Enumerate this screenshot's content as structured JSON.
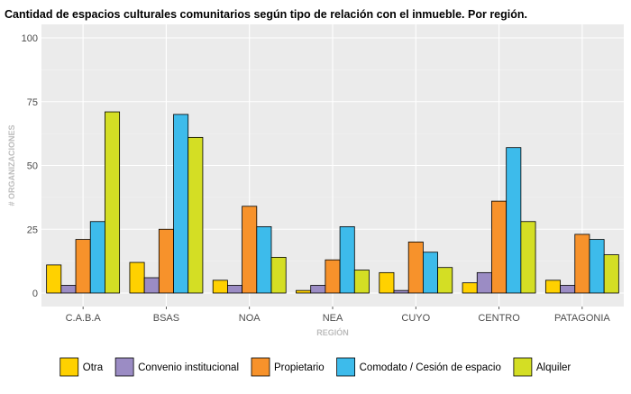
{
  "chart_data": {
    "type": "bar",
    "title": "Cantidad de espacios culturales comunitarios según tipo de relación con el inmueble. Por región.",
    "xlabel": "REGIÓN",
    "ylabel": "# ORGANIZACIONES",
    "ylim": [
      0,
      105
    ],
    "yticks": [
      0,
      25,
      50,
      75,
      100
    ],
    "grid": true,
    "legend_position": "bottom",
    "categories": [
      "C.A.B.A",
      "BSAS",
      "NOA",
      "NEA",
      "CUYO",
      "CENTRO",
      "PATAGONIA"
    ],
    "series": [
      {
        "name": "Otra",
        "color": "#FFD100",
        "values": [
          11,
          12,
          5,
          1,
          8,
          4,
          5
        ]
      },
      {
        "name": "Convenio institucional",
        "color": "#9B8CC4",
        "values": [
          3,
          6,
          3,
          3,
          1,
          8,
          3
        ]
      },
      {
        "name": "Propietario",
        "color": "#F7922B",
        "values": [
          21,
          25,
          34,
          13,
          20,
          36,
          23
        ]
      },
      {
        "name": "Comodato / Cesión de espacio",
        "color": "#3DBBEB",
        "values": [
          28,
          70,
          26,
          26,
          16,
          57,
          21
        ]
      },
      {
        "name": "Alquiler",
        "color": "#D4DE24",
        "values": [
          71,
          61,
          14,
          9,
          10,
          28,
          15
        ]
      }
    ]
  }
}
